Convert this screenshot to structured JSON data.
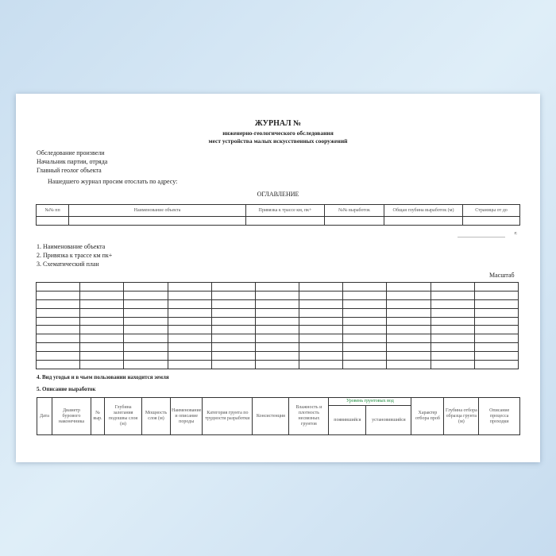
{
  "title": "ЖУРНАЛ №",
  "subtitle1": "инженерно-геологического обследования",
  "subtitle2": "мест устройства малых искусственных сооружений",
  "fields": [
    "Обследование произвели",
    "Начальник партии, отряда",
    "Главный геолог объекта"
  ],
  "address_note": "Нашедшего журнал просим отослать по адресу:",
  "contents_title": "ОГЛАВЛЕНИЕ",
  "contents_headers": [
    "№№ пп",
    "Наименование объекта",
    "Привязка к трассе км, пк+",
    "№№ выработок",
    "Общая глубина выработок (м)",
    "Страницы от до"
  ],
  "year_suffix": "г.",
  "items": [
    "1. Наименование объекта",
    "2. Привязка к трассе км    пк+",
    "3. Схематический план"
  ],
  "scale_label": "Масштаб",
  "item4": "4. Вид угодья и в чьем пользовании находится земля",
  "item5": "5. Описание выработок",
  "works_headers": [
    "Дата",
    "Диаметр бурового наконечника",
    "№ выр.",
    "Глубина залегания подошвы слоя (м)",
    "Мощность слоя (м)",
    "Наименование и описание породы",
    "Категория грунта по трудности разработки",
    "Консистенция",
    "Влажность и плотность несвязных грунтов",
    "Уровень грунтовых вод",
    "появившийся",
    "установившийся",
    "Характер отбора проб",
    "Глубина отбора образца грунта (м)",
    "Описание процесса проходки"
  ]
}
